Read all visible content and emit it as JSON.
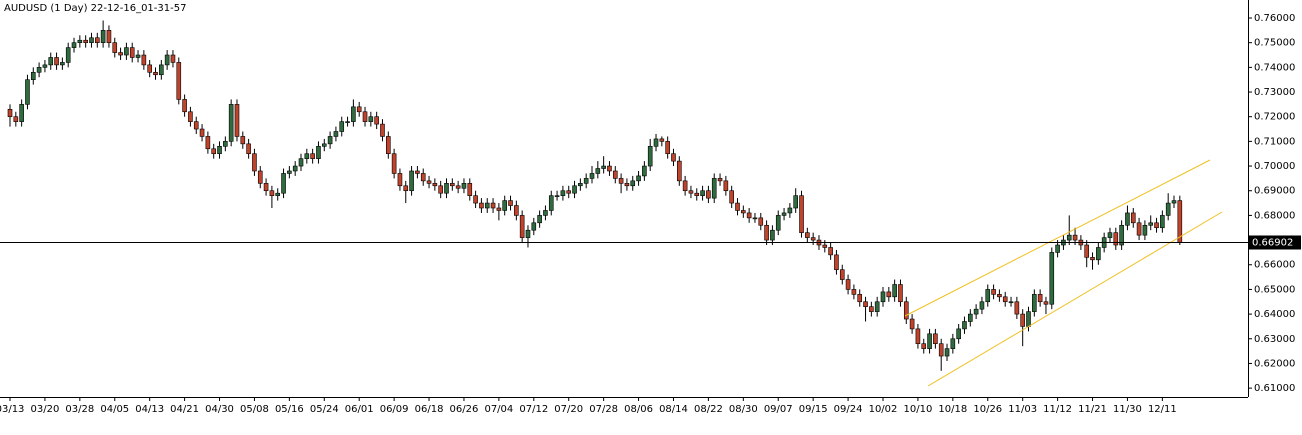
{
  "chart_data": {
    "type": "candlestick",
    "title": "AUDUSD (1 Day) 22-12-16_01-31-57",
    "up_color": "#2f6b3f",
    "down_color": "#c0432c",
    "ylim": [
      0.6064,
      0.7673
    ],
    "yticks": [
      {
        "value": 0.61,
        "label": "0.61000"
      },
      {
        "value": 0.62,
        "label": "0.62000"
      },
      {
        "value": 0.63,
        "label": "0.63000"
      },
      {
        "value": 0.64,
        "label": "0.64000"
      },
      {
        "value": 0.65,
        "label": "0.65000"
      },
      {
        "value": 0.66,
        "label": "0.66000"
      },
      {
        "value": 0.67,
        "label": "0.67000"
      },
      {
        "value": 0.68,
        "label": "0.68000"
      },
      {
        "value": 0.69,
        "label": "0.69000"
      },
      {
        "value": 0.7,
        "label": "0.70000"
      },
      {
        "value": 0.71,
        "label": "0.71000"
      },
      {
        "value": 0.72,
        "label": "0.72000"
      },
      {
        "value": 0.73,
        "label": "0.73000"
      },
      {
        "value": 0.74,
        "label": "0.74000"
      },
      {
        "value": 0.75,
        "label": "0.75000"
      },
      {
        "value": 0.76,
        "label": "0.76000"
      }
    ],
    "price_line": 0.66902,
    "categories": [
      "03/13",
      null,
      null,
      null,
      null,
      null,
      "03/20",
      null,
      null,
      null,
      null,
      null,
      "03/28",
      null,
      null,
      null,
      null,
      null,
      "04/05",
      null,
      null,
      null,
      null,
      null,
      "04/13",
      null,
      null,
      null,
      null,
      null,
      "04/21",
      null,
      null,
      null,
      null,
      null,
      "04/30",
      null,
      null,
      null,
      null,
      null,
      "05/08",
      null,
      null,
      null,
      null,
      null,
      "05/16",
      null,
      null,
      null,
      null,
      null,
      "05/24",
      null,
      null,
      null,
      null,
      null,
      "06/01",
      null,
      null,
      null,
      null,
      null,
      "06/09",
      null,
      null,
      null,
      null,
      null,
      "06/18",
      null,
      null,
      null,
      null,
      null,
      "06/26",
      null,
      null,
      null,
      null,
      null,
      "07/04",
      null,
      null,
      null,
      null,
      null,
      "07/12",
      null,
      null,
      null,
      null,
      null,
      "07/20",
      null,
      null,
      null,
      null,
      null,
      "07/28",
      null,
      null,
      null,
      null,
      null,
      "08/06",
      null,
      null,
      null,
      null,
      null,
      "08/14",
      null,
      null,
      null,
      null,
      null,
      "08/22",
      null,
      null,
      null,
      null,
      null,
      "08/30",
      null,
      null,
      null,
      null,
      null,
      "09/07",
      null,
      null,
      null,
      null,
      null,
      "09/15",
      null,
      null,
      null,
      null,
      null,
      "09/24",
      null,
      null,
      null,
      null,
      null,
      "10/02",
      null,
      null,
      null,
      null,
      null,
      "10/10",
      null,
      null,
      null,
      null,
      null,
      "10/18",
      null,
      null,
      null,
      null,
      null,
      "10/26",
      null,
      null,
      null,
      null,
      null,
      "11/03",
      null,
      null,
      null,
      null,
      null,
      "11/12",
      null,
      null,
      null,
      null,
      null,
      "11/21",
      null,
      null,
      null,
      null,
      null,
      "11/30",
      null,
      null,
      null,
      null,
      null,
      "12/11",
      null,
      null,
      null
    ],
    "open": [
      0.723,
      0.72,
      0.718,
      0.725,
      0.735,
      0.738,
      0.74,
      0.741,
      0.744,
      0.741,
      0.742,
      0.748,
      0.75,
      0.751,
      0.75,
      0.752,
      0.75,
      0.755,
      0.75,
      0.746,
      0.745,
      0.748,
      0.744,
      0.745,
      0.741,
      0.738,
      0.737,
      0.741,
      0.745,
      0.742,
      0.727,
      0.722,
      0.718,
      0.715,
      0.712,
      0.707,
      0.705,
      0.708,
      0.71,
      0.725,
      0.712,
      0.709,
      0.705,
      0.698,
      0.693,
      0.69,
      0.688,
      0.689,
      0.697,
      0.698,
      0.7,
      0.703,
      0.705,
      0.703,
      0.708,
      0.709,
      0.712,
      0.714,
      0.718,
      0.718,
      0.724,
      0.722,
      0.718,
      0.72,
      0.717,
      0.712,
      0.705,
      0.697,
      0.692,
      0.69,
      0.698,
      0.697,
      0.694,
      0.693,
      0.692,
      0.689,
      0.693,
      0.692,
      0.691,
      0.693,
      0.688,
      0.685,
      0.683,
      0.685,
      0.683,
      0.682,
      0.686,
      0.684,
      0.68,
      0.671,
      0.674,
      0.677,
      0.68,
      0.682,
      0.688,
      0.688,
      0.69,
      0.689,
      0.692,
      0.693,
      0.695,
      0.697,
      0.699,
      0.7,
      0.698,
      0.695,
      0.693,
      0.692,
      0.694,
      0.696,
      0.7,
      0.708,
      0.711,
      0.71,
      0.705,
      0.702,
      0.694,
      0.69,
      0.689,
      0.688,
      0.69,
      0.687,
      0.695,
      0.694,
      0.69,
      0.685,
      0.682,
      0.681,
      0.679,
      0.679,
      0.676,
      0.67,
      0.674,
      0.68,
      0.681,
      0.683,
      0.688,
      0.673,
      0.671,
      0.67,
      0.668,
      0.667,
      0.664,
      0.658,
      0.654,
      0.65,
      0.648,
      0.645,
      0.643,
      0.641,
      0.645,
      0.649,
      0.647,
      0.652,
      0.645,
      0.638,
      0.634,
      0.628,
      0.626,
      0.632,
      0.628,
      0.623,
      0.626,
      0.63,
      0.634,
      0.637,
      0.64,
      0.642,
      0.645,
      0.65,
      0.648,
      0.647,
      0.645,
      0.645,
      0.64,
      0.635,
      0.641,
      0.648,
      0.645,
      0.644,
      0.665,
      0.668,
      0.67,
      0.672,
      0.67,
      0.668,
      0.663,
      0.662,
      0.667,
      0.671,
      0.673,
      0.668,
      0.676,
      0.681,
      0.677,
      0.672,
      0.676,
      0.677,
      0.675,
      0.68,
      0.685,
      0.686
    ],
    "high": [
      0.725,
      0.722,
      0.727,
      0.737,
      0.74,
      0.742,
      0.743,
      0.746,
      0.746,
      0.744,
      0.75,
      0.752,
      0.753,
      0.753,
      0.754,
      0.754,
      0.759,
      0.757,
      0.752,
      0.748,
      0.75,
      0.75,
      0.747,
      0.747,
      0.743,
      0.74,
      0.743,
      0.747,
      0.747,
      0.744,
      0.729,
      0.724,
      0.72,
      0.717,
      0.714,
      0.709,
      0.71,
      0.712,
      0.727,
      0.727,
      0.714,
      0.711,
      0.707,
      0.7,
      0.695,
      0.692,
      0.691,
      0.699,
      0.7,
      0.702,
      0.705,
      0.707,
      0.707,
      0.71,
      0.711,
      0.714,
      0.716,
      0.72,
      0.72,
      0.727,
      0.726,
      0.724,
      0.722,
      0.722,
      0.719,
      0.714,
      0.707,
      0.699,
      0.694,
      0.7,
      0.7,
      0.699,
      0.696,
      0.695,
      0.694,
      0.695,
      0.695,
      0.694,
      0.695,
      0.695,
      0.69,
      0.687,
      0.687,
      0.687,
      0.685,
      0.688,
      0.688,
      0.686,
      0.682,
      0.676,
      0.679,
      0.682,
      0.684,
      0.69,
      0.69,
      0.692,
      0.692,
      0.694,
      0.695,
      0.697,
      0.7,
      0.702,
      0.704,
      0.702,
      0.7,
      0.697,
      0.695,
      0.696,
      0.698,
      0.702,
      0.711,
      0.713,
      0.712,
      0.712,
      0.707,
      0.704,
      0.696,
      0.692,
      0.691,
      0.692,
      0.692,
      0.697,
      0.697,
      0.696,
      0.692,
      0.687,
      0.684,
      0.683,
      0.681,
      0.681,
      0.678,
      0.676,
      0.682,
      0.683,
      0.685,
      0.691,
      0.69,
      0.675,
      0.673,
      0.672,
      0.67,
      0.669,
      0.666,
      0.66,
      0.656,
      0.652,
      0.65,
      0.647,
      0.645,
      0.647,
      0.651,
      0.651,
      0.654,
      0.654,
      0.647,
      0.64,
      0.636,
      0.63,
      0.634,
      0.634,
      0.63,
      0.628,
      0.632,
      0.636,
      0.639,
      0.642,
      0.644,
      0.647,
      0.652,
      0.652,
      0.65,
      0.649,
      0.647,
      0.647,
      0.642,
      0.643,
      0.65,
      0.65,
      0.647,
      0.667,
      0.67,
      0.672,
      0.68,
      0.675,
      0.672,
      0.67,
      0.665,
      0.669,
      0.673,
      0.675,
      0.675,
      0.678,
      0.684,
      0.683,
      0.679,
      0.678,
      0.68,
      0.679,
      0.682,
      0.689,
      0.688,
      0.688
    ],
    "low": [
      0.716,
      0.716,
      0.716,
      0.723,
      0.733,
      0.736,
      0.738,
      0.739,
      0.739,
      0.739,
      0.74,
      0.746,
      0.748,
      0.748,
      0.748,
      0.748,
      0.748,
      0.748,
      0.744,
      0.743,
      0.743,
      0.742,
      0.742,
      0.739,
      0.736,
      0.735,
      0.735,
      0.739,
      0.74,
      0.725,
      0.72,
      0.716,
      0.713,
      0.71,
      0.705,
      0.703,
      0.703,
      0.706,
      0.708,
      0.71,
      0.707,
      0.703,
      0.696,
      0.691,
      0.688,
      0.683,
      0.686,
      0.687,
      0.695,
      0.696,
      0.698,
      0.701,
      0.701,
      0.701,
      0.706,
      0.707,
      0.71,
      0.712,
      0.716,
      0.716,
      0.72,
      0.716,
      0.716,
      0.715,
      0.71,
      0.703,
      0.695,
      0.69,
      0.685,
      0.688,
      0.695,
      0.692,
      0.691,
      0.69,
      0.687,
      0.687,
      0.69,
      0.689,
      0.689,
      0.686,
      0.683,
      0.681,
      0.681,
      0.681,
      0.678,
      0.68,
      0.682,
      0.678,
      0.669,
      0.667,
      0.672,
      0.675,
      0.678,
      0.68,
      0.686,
      0.686,
      0.687,
      0.687,
      0.69,
      0.691,
      0.693,
      0.695,
      0.697,
      0.696,
      0.693,
      0.689,
      0.69,
      0.69,
      0.692,
      0.694,
      0.698,
      0.706,
      0.708,
      0.703,
      0.7,
      0.692,
      0.688,
      0.687,
      0.686,
      0.686,
      0.685,
      0.685,
      0.692,
      0.688,
      0.683,
      0.68,
      0.679,
      0.677,
      0.677,
      0.674,
      0.668,
      0.668,
      0.672,
      0.678,
      0.679,
      0.681,
      0.671,
      0.669,
      0.668,
      0.666,
      0.665,
      0.662,
      0.656,
      0.652,
      0.648,
      0.646,
      0.643,
      0.637,
      0.639,
      0.639,
      0.643,
      0.645,
      0.645,
      0.643,
      0.636,
      0.632,
      0.626,
      0.624,
      0.624,
      0.626,
      0.617,
      0.621,
      0.624,
      0.628,
      0.632,
      0.635,
      0.638,
      0.64,
      0.643,
      0.646,
      0.645,
      0.643,
      0.643,
      0.638,
      0.627,
      0.633,
      0.639,
      0.643,
      0.64,
      0.642,
      0.663,
      0.666,
      0.668,
      0.668,
      0.666,
      0.659,
      0.658,
      0.66,
      0.665,
      0.669,
      0.666,
      0.666,
      0.674,
      0.675,
      0.67,
      0.67,
      0.674,
      0.673,
      0.673,
      0.678,
      0.683,
      0.668
    ],
    "close": [
      0.72,
      0.718,
      0.725,
      0.735,
      0.738,
      0.74,
      0.741,
      0.744,
      0.741,
      0.742,
      0.748,
      0.75,
      0.751,
      0.75,
      0.752,
      0.75,
      0.755,
      0.75,
      0.746,
      0.745,
      0.748,
      0.744,
      0.745,
      0.741,
      0.738,
      0.737,
      0.741,
      0.745,
      0.742,
      0.727,
      0.722,
      0.718,
      0.715,
      0.712,
      0.707,
      0.705,
      0.708,
      0.71,
      0.725,
      0.712,
      0.709,
      0.705,
      0.698,
      0.693,
      0.69,
      0.688,
      0.689,
      0.697,
      0.698,
      0.7,
      0.703,
      0.705,
      0.703,
      0.708,
      0.709,
      0.712,
      0.714,
      0.718,
      0.718,
      0.724,
      0.722,
      0.718,
      0.72,
      0.717,
      0.712,
      0.705,
      0.697,
      0.692,
      0.69,
      0.698,
      0.697,
      0.694,
      0.693,
      0.692,
      0.689,
      0.693,
      0.692,
      0.691,
      0.693,
      0.688,
      0.685,
      0.683,
      0.685,
      0.683,
      0.682,
      0.686,
      0.684,
      0.68,
      0.671,
      0.674,
      0.677,
      0.68,
      0.682,
      0.688,
      0.688,
      0.69,
      0.689,
      0.692,
      0.693,
      0.695,
      0.697,
      0.699,
      0.7,
      0.698,
      0.695,
      0.693,
      0.692,
      0.694,
      0.696,
      0.7,
      0.708,
      0.711,
      0.71,
      0.705,
      0.702,
      0.694,
      0.69,
      0.689,
      0.688,
      0.69,
      0.687,
      0.695,
      0.694,
      0.69,
      0.685,
      0.682,
      0.681,
      0.679,
      0.679,
      0.676,
      0.67,
      0.674,
      0.68,
      0.681,
      0.683,
      0.688,
      0.673,
      0.671,
      0.67,
      0.668,
      0.667,
      0.664,
      0.658,
      0.654,
      0.65,
      0.648,
      0.645,
      0.643,
      0.641,
      0.645,
      0.649,
      0.647,
      0.652,
      0.645,
      0.638,
      0.634,
      0.628,
      0.626,
      0.632,
      0.628,
      0.623,
      0.626,
      0.63,
      0.634,
      0.637,
      0.64,
      0.642,
      0.645,
      0.65,
      0.648,
      0.647,
      0.645,
      0.645,
      0.64,
      0.635,
      0.641,
      0.648,
      0.645,
      0.644,
      0.665,
      0.668,
      0.67,
      0.672,
      0.67,
      0.668,
      0.663,
      0.662,
      0.667,
      0.671,
      0.673,
      0.668,
      0.676,
      0.681,
      0.677,
      0.672,
      0.676,
      0.677,
      0.675,
      0.68,
      0.685,
      0.686,
      0.669
    ]
  }
}
